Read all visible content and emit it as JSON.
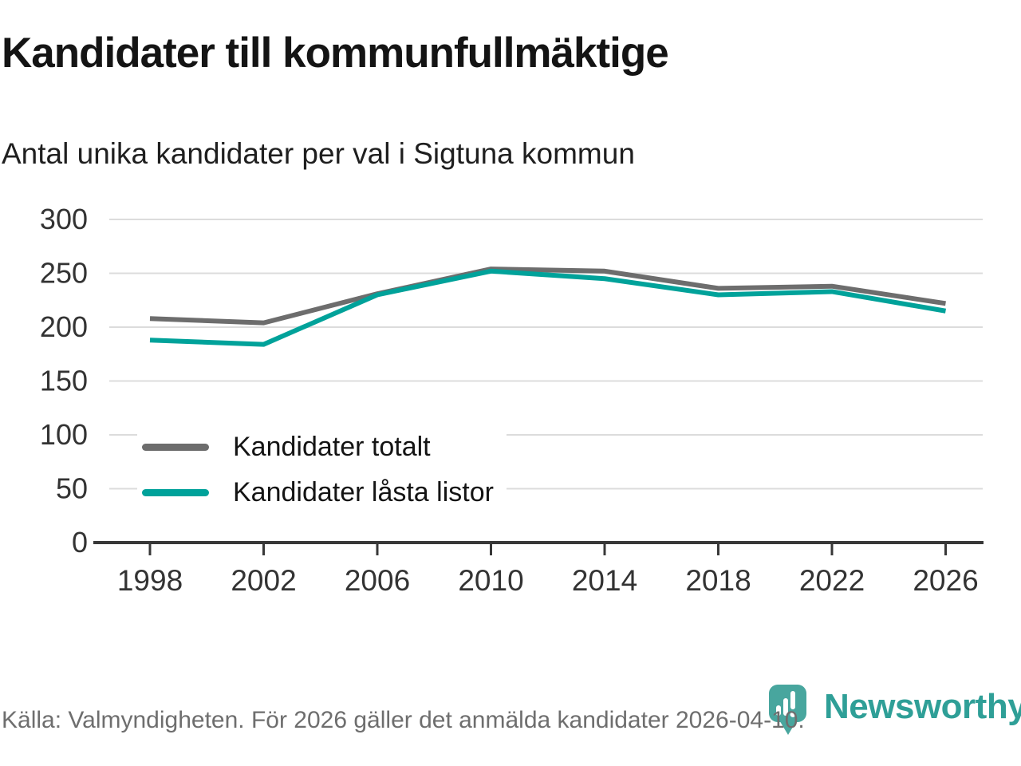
{
  "header": {
    "title": "Kandidater till kommunfullmäktige",
    "subtitle": "Antal unika kandidater per val i Sigtuna kommun"
  },
  "chart_data": {
    "type": "line",
    "title": "Kandidater till kommunfullmäktige",
    "subtitle": "Antal unika kandidater per val i Sigtuna kommun",
    "x": [
      1998,
      2002,
      2006,
      2010,
      2014,
      2018,
      2022,
      2026
    ],
    "series": [
      {
        "name": "Kandidater totalt",
        "color": "#6d6d6d",
        "values": [
          208,
          204,
          231,
          254,
          252,
          236,
          238,
          222
        ]
      },
      {
        "name": "Kandidater låsta listor",
        "color": "#00a29a",
        "values": [
          188,
          184,
          230,
          252,
          245,
          230,
          233,
          215
        ]
      }
    ],
    "ylim": [
      0,
      300
    ],
    "y_ticks": [
      0,
      50,
      100,
      150,
      200,
      250,
      300
    ],
    "grid": "horizontal",
    "gridline_color": "#dcdcdc",
    "axis_color": "#383838",
    "tick_label_color": "#333333",
    "legend_position": "inside-left"
  },
  "legend": {
    "items": [
      {
        "label": "Kandidater totalt",
        "color": "#6d6d6d"
      },
      {
        "label": "Kandidater låsta listor",
        "color": "#00a29a"
      }
    ]
  },
  "footer": {
    "source": "Källa: Valmyndigheten. För 2026 gäller det anmälda kandidater 2026-04-10."
  },
  "branding": {
    "name": "Newsworthy",
    "text_color": "#2f9f97",
    "pin_color": "#48a69e"
  }
}
